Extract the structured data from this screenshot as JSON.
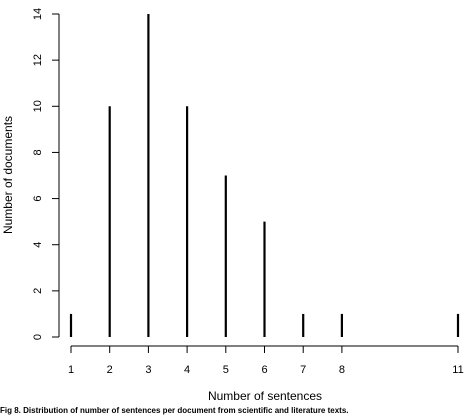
{
  "chart_data": {
    "type": "bar",
    "x": [
      1,
      2,
      3,
      4,
      5,
      6,
      7,
      8,
      11
    ],
    "values": [
      1,
      10,
      14,
      10,
      7,
      5,
      1,
      1,
      1
    ],
    "x_ticks": [
      1,
      2,
      3,
      4,
      5,
      6,
      7,
      8,
      11
    ],
    "y_ticks": [
      0,
      2,
      4,
      6,
      8,
      10,
      12,
      14
    ],
    "xlim": [
      1,
      11
    ],
    "ylim": [
      0,
      14
    ],
    "xlabel": "Number of sentences",
    "ylabel": "Number of documents",
    "title": "",
    "grid": false,
    "legend": "none"
  },
  "caption": "Fig 8. Distribution of number of sentences per document from scientific and literature texts."
}
